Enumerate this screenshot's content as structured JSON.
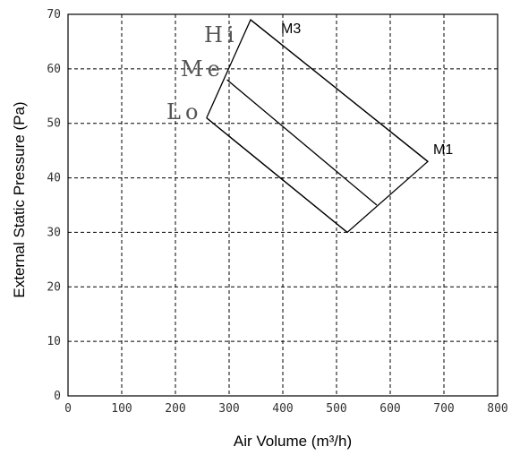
{
  "chart_data": {
    "type": "line",
    "title": "",
    "xlabel": "Air Volume (m³/h)",
    "ylabel": "External Static Pressure (Pa)",
    "xlim": [
      0,
      800
    ],
    "ylim": [
      0,
      70
    ],
    "x_ticks": [
      0,
      100,
      200,
      300,
      400,
      500,
      600,
      700,
      800
    ],
    "y_ticks": [
      0,
      10,
      20,
      30,
      40,
      50,
      60,
      70
    ],
    "grid": true,
    "series": [
      {
        "name": "Hi",
        "points": [
          [
            340,
            69
          ],
          [
            670,
            43
          ]
        ]
      },
      {
        "name": "Me",
        "points": [
          [
            296,
            58
          ],
          [
            575,
            35
          ]
        ]
      },
      {
        "name": "Lo",
        "points": [
          [
            258,
            51
          ],
          [
            520,
            30
          ]
        ]
      }
    ],
    "boundary": [
      [
        258,
        51
      ],
      [
        340,
        69
      ],
      [
        670,
        43
      ],
      [
        520,
        30
      ],
      [
        258,
        51
      ]
    ],
    "annotations": [
      {
        "text": "Hi",
        "style": "serif"
      },
      {
        "text": "Me",
        "style": "serif"
      },
      {
        "text": "Lo",
        "style": "serif"
      },
      {
        "text": "M3",
        "style": "sans"
      },
      {
        "text": "M1",
        "style": "sans"
      }
    ]
  }
}
